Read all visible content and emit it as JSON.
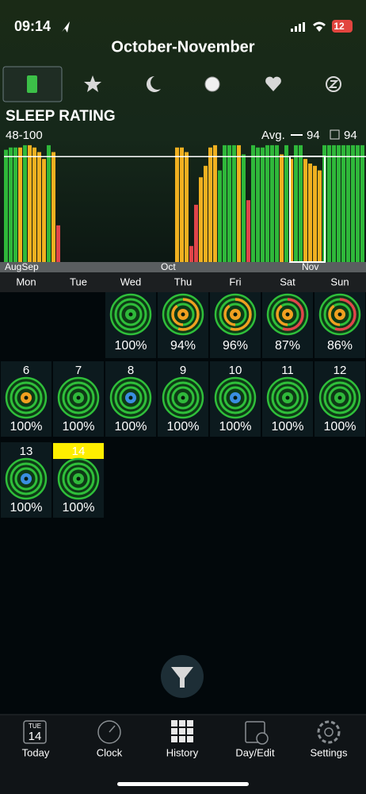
{
  "status": {
    "time": "09:14",
    "battery": "12"
  },
  "header": {
    "title": "October-November"
  },
  "chart": {
    "title": "SLEEP RATING",
    "range": "48-100",
    "avg_label": "Avg.",
    "avg_value": 94,
    "selected_value": 94,
    "ylim": [
      48,
      100
    ],
    "values": [
      97,
      98,
      98,
      98,
      99,
      99,
      98,
      96,
      93,
      99,
      96,
      64,
      null,
      null,
      null,
      null,
      null,
      null,
      null,
      null,
      null,
      null,
      null,
      null,
      null,
      null,
      null,
      null,
      null,
      null,
      null,
      null,
      null,
      null,
      null,
      null,
      98,
      98,
      96,
      55,
      73,
      85,
      90,
      98,
      99,
      88,
      99,
      99,
      99,
      99,
      95,
      75,
      99,
      98,
      98,
      99,
      99,
      99,
      95,
      99,
      93,
      99,
      99,
      93,
      91,
      90,
      88,
      99,
      99,
      99,
      99,
      99,
      99,
      99,
      99,
      99
    ],
    "colors": [
      "#2fb83a",
      "#2fb83a",
      "#2fb83a",
      "#f0b020",
      "#2fb83a",
      "#f0b020",
      "#f0b020",
      "#f0b020",
      "#f0b020",
      "#2fb83a",
      "#f0b020",
      "#e0454a",
      null,
      null,
      null,
      null,
      null,
      null,
      null,
      null,
      null,
      null,
      null,
      null,
      null,
      null,
      null,
      null,
      null,
      null,
      null,
      null,
      null,
      null,
      null,
      null,
      "#f0b020",
      "#f0b020",
      "#f0b020",
      "#e0454a",
      "#e0454a",
      "#f0b020",
      "#f0b020",
      "#f0b020",
      "#f0b020",
      "#2fb83a",
      "#2fb83a",
      "#2fb83a",
      "#2fb83a",
      "#f0b020",
      "#2fb83a",
      "#e0454a",
      "#2fb83a",
      "#2fb83a",
      "#2fb83a",
      "#2fb83a",
      "#2fb83a",
      "#2fb83a",
      "#f0b020",
      "#2fb83a",
      "#f0b020",
      "#2fb83a",
      "#2fb83a",
      "#f0b020",
      "#f0b020",
      "#f0b020",
      "#f0b020",
      "#2fb83a",
      "#2fb83a",
      "#2fb83a",
      "#2fb83a",
      "#2fb83a",
      "#2fb83a",
      "#2fb83a",
      "#2fb83a",
      "#2fb83a"
    ],
    "months": [
      "AugSep",
      "Oct",
      "Nov"
    ]
  },
  "weekdays": [
    "Mon",
    "Tue",
    "Wed",
    "Thu",
    "Fri",
    "Sat",
    "Sun"
  ],
  "calendar": {
    "rows": [
      [
        null,
        null,
        {
          "percent": "100%",
          "core": "#2fb83a"
        },
        {
          "percent": "94%",
          "core": "#f0a020",
          "accent": "#f0a020"
        },
        {
          "percent": "96%",
          "core": "#f0a020",
          "accent": "#f0a020"
        },
        {
          "percent": "87%",
          "core": "#f0a020",
          "accent": "#e0454a"
        },
        {
          "percent": "86%",
          "core": "#f0a020",
          "accent": "#e0454a"
        }
      ],
      [
        {
          "day": 6,
          "percent": "100%",
          "core": "#f0a020"
        },
        {
          "day": 7,
          "percent": "100%",
          "core": "#2fb83a"
        },
        {
          "day": 8,
          "percent": "100%",
          "core": "#3a8ee0"
        },
        {
          "day": 9,
          "percent": "100%",
          "core": "#2fb83a"
        },
        {
          "day": 10,
          "percent": "100%",
          "core": "#3a8ee0"
        },
        {
          "day": 11,
          "percent": "100%",
          "core": "#2fb83a"
        },
        {
          "day": 12,
          "percent": "100%",
          "core": "#2fb83a"
        }
      ],
      [
        {
          "day": 13,
          "percent": "100%",
          "core": "#3a8ee0"
        },
        {
          "day": 14,
          "percent": "100%",
          "core": "#2fb83a",
          "today": true
        }
      ]
    ]
  },
  "today_icon": {
    "weekday": "TUE",
    "day": "14"
  },
  "tabs": [
    "Today",
    "Clock",
    "History",
    "Day/Edit",
    "Settings"
  ],
  "selected_tab": 2
}
